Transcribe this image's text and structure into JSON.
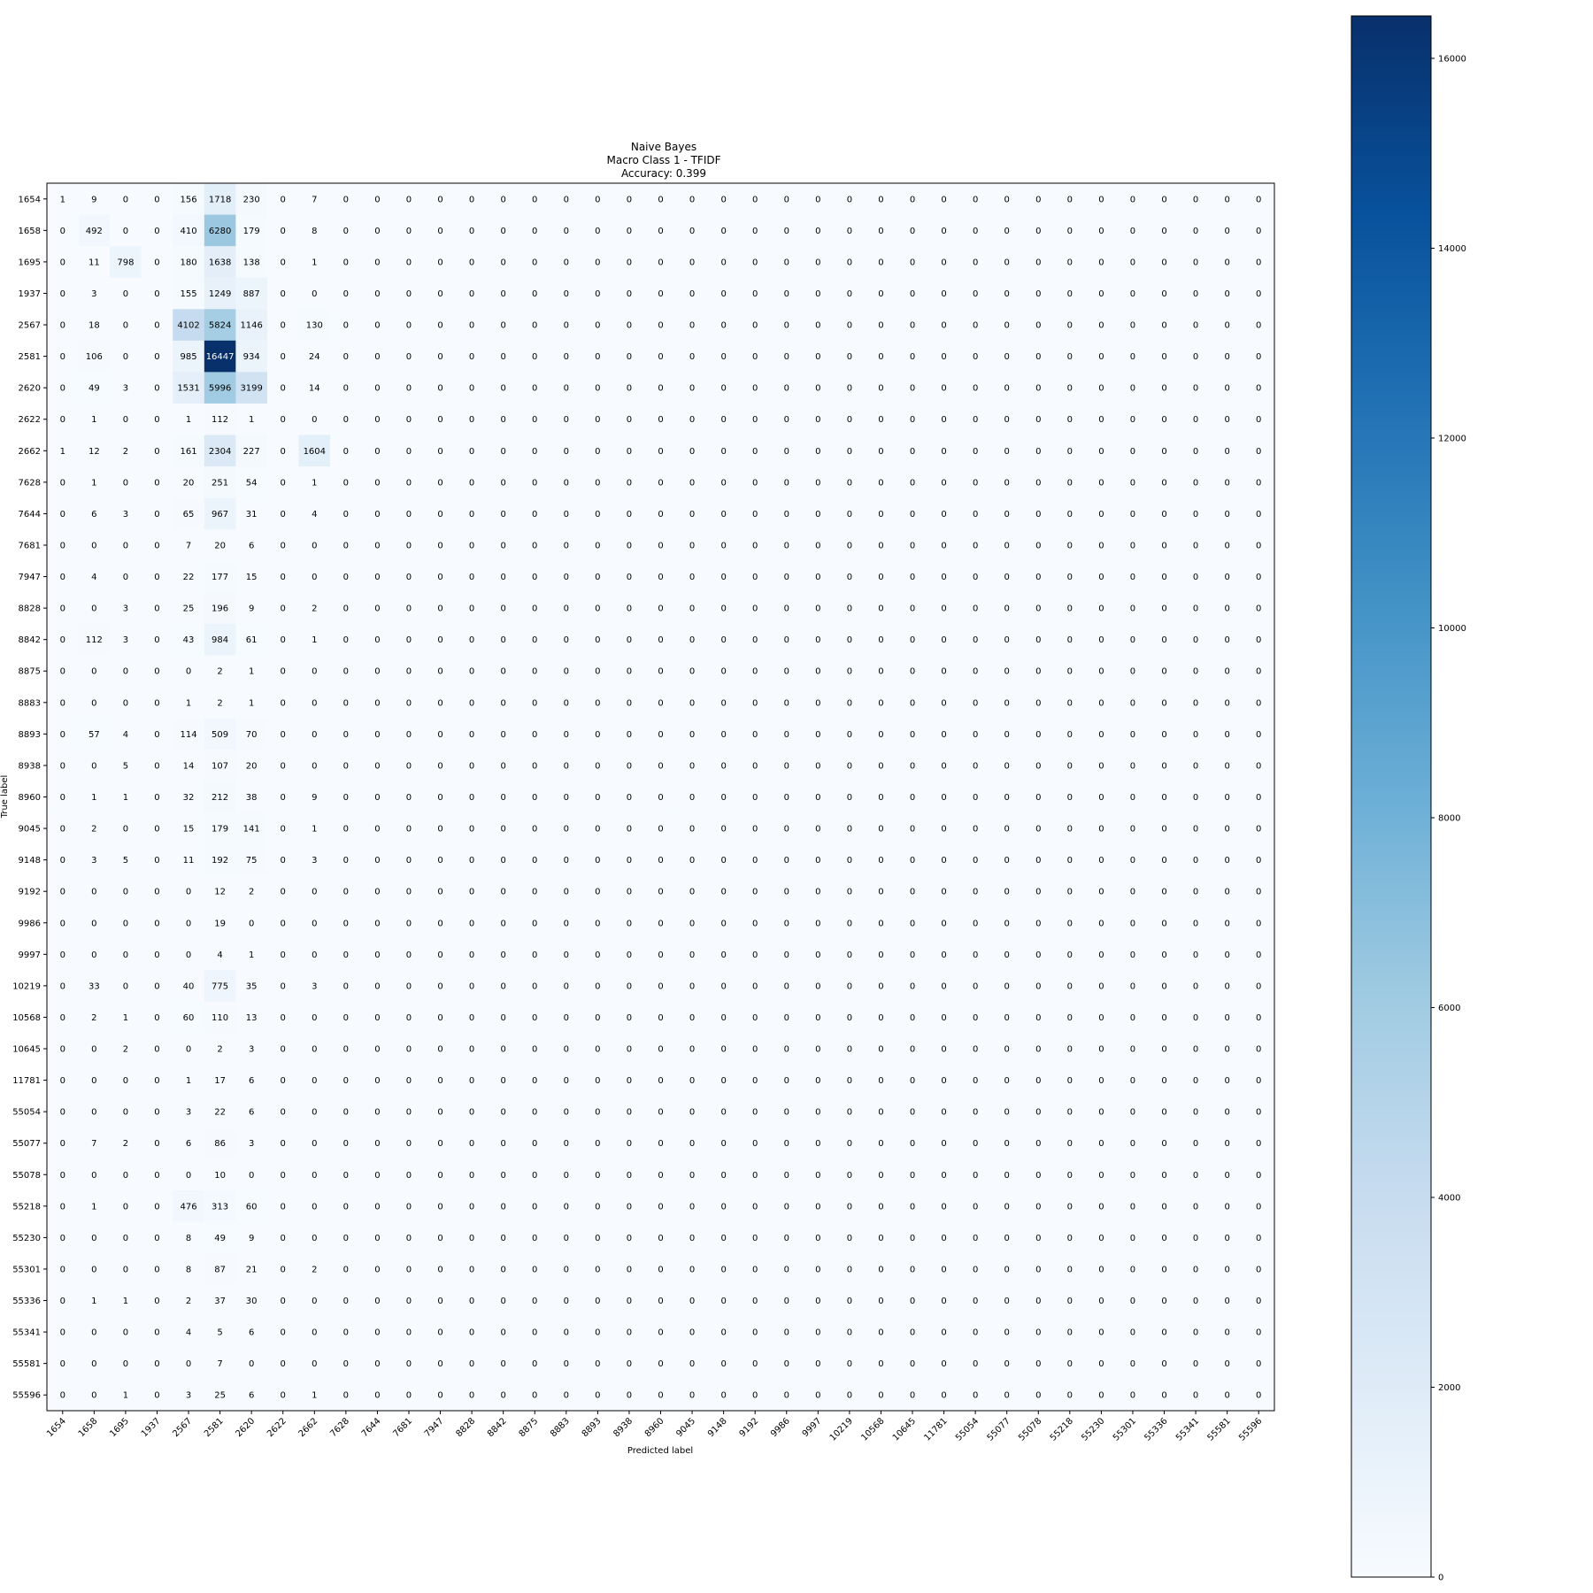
{
  "chart_data": {
    "type": "heatmap",
    "title_lines": [
      "Naive Bayes",
      "Macro Class 1 - TFIDF",
      "Accuracy: 0.399"
    ],
    "xlabel": "Predicted label",
    "ylabel": "True label",
    "labels": [
      "1654",
      "1658",
      "1695",
      "1937",
      "2567",
      "2581",
      "2620",
      "2622",
      "2662",
      "7628",
      "7644",
      "7681",
      "7947",
      "8828",
      "8842",
      "8875",
      "8883",
      "8893",
      "8938",
      "8960",
      "9045",
      "9148",
      "9192",
      "9986",
      "9997",
      "10219",
      "10568",
      "10645",
      "11781",
      "55054",
      "55077",
      "55078",
      "55218",
      "55230",
      "55301",
      "55336",
      "55341",
      "55581",
      "55596"
    ],
    "nonzero_cols": [
      "1654",
      "1658",
      "1695",
      "1937",
      "2567",
      "2581",
      "2620",
      "2622",
      "2662"
    ],
    "rows": [
      [
        1,
        9,
        0,
        0,
        156,
        1718,
        230,
        0,
        7
      ],
      [
        0,
        492,
        0,
        0,
        410,
        6280,
        179,
        0,
        8
      ],
      [
        0,
        11,
        798,
        0,
        180,
        1638,
        138,
        0,
        1
      ],
      [
        0,
        3,
        0,
        0,
        155,
        1249,
        887,
        0,
        0
      ],
      [
        0,
        18,
        0,
        0,
        4102,
        5824,
        1146,
        0,
        130
      ],
      [
        0,
        106,
        0,
        0,
        985,
        16447,
        934,
        0,
        24
      ],
      [
        0,
        49,
        3,
        0,
        1531,
        5996,
        3199,
        0,
        14
      ],
      [
        0,
        1,
        0,
        0,
        1,
        112,
        1,
        0,
        0
      ],
      [
        1,
        12,
        2,
        0,
        161,
        2304,
        227,
        0,
        1604
      ],
      [
        0,
        1,
        0,
        0,
        20,
        251,
        54,
        0,
        1
      ],
      [
        0,
        6,
        3,
        0,
        65,
        967,
        31,
        0,
        4
      ],
      [
        0,
        0,
        0,
        0,
        7,
        20,
        6,
        0,
        0
      ],
      [
        0,
        4,
        0,
        0,
        22,
        177,
        15,
        0,
        0
      ],
      [
        0,
        0,
        3,
        0,
        25,
        196,
        9,
        0,
        2
      ],
      [
        0,
        112,
        3,
        0,
        43,
        984,
        61,
        0,
        1
      ],
      [
        0,
        0,
        0,
        0,
        0,
        2,
        1,
        0,
        0
      ],
      [
        0,
        0,
        0,
        0,
        1,
        2,
        1,
        0,
        0
      ],
      [
        0,
        57,
        4,
        0,
        114,
        509,
        70,
        0,
        0
      ],
      [
        0,
        0,
        5,
        0,
        14,
        107,
        20,
        0,
        0
      ],
      [
        0,
        1,
        1,
        0,
        32,
        212,
        38,
        0,
        9
      ],
      [
        0,
        2,
        0,
        0,
        15,
        179,
        141,
        0,
        1
      ],
      [
        0,
        3,
        5,
        0,
        11,
        192,
        75,
        0,
        3
      ],
      [
        0,
        0,
        0,
        0,
        0,
        12,
        2,
        0,
        0
      ],
      [
        0,
        0,
        0,
        0,
        0,
        19,
        0,
        0,
        0
      ],
      [
        0,
        0,
        0,
        0,
        0,
        4,
        1,
        0,
        0
      ],
      [
        0,
        33,
        0,
        0,
        40,
        775,
        35,
        0,
        3
      ],
      [
        0,
        2,
        1,
        0,
        60,
        110,
        13,
        0,
        0
      ],
      [
        0,
        0,
        2,
        0,
        0,
        2,
        3,
        0,
        0
      ],
      [
        0,
        0,
        0,
        0,
        1,
        17,
        6,
        0,
        0
      ],
      [
        0,
        0,
        0,
        0,
        3,
        22,
        6,
        0,
        0
      ],
      [
        0,
        7,
        2,
        0,
        6,
        86,
        3,
        0,
        0
      ],
      [
        0,
        0,
        0,
        0,
        0,
        10,
        0,
        0,
        0
      ],
      [
        0,
        1,
        0,
        0,
        476,
        313,
        60,
        0,
        0
      ],
      [
        0,
        0,
        0,
        0,
        8,
        49,
        9,
        0,
        0
      ],
      [
        0,
        0,
        0,
        0,
        8,
        87,
        21,
        0,
        2
      ],
      [
        0,
        1,
        1,
        0,
        2,
        37,
        30,
        0,
        0
      ],
      [
        0,
        0,
        0,
        0,
        4,
        5,
        6,
        0,
        0
      ],
      [
        0,
        0,
        0,
        0,
        0,
        7,
        0,
        0,
        0
      ],
      [
        0,
        0,
        1,
        0,
        3,
        25,
        6,
        0,
        1
      ]
    ],
    "colorbar": {
      "range": [
        0,
        16447
      ],
      "ticks": [
        0,
        2000,
        4000,
        6000,
        8000,
        10000,
        12000,
        14000,
        16000
      ],
      "colormap": "Blues",
      "colors": [
        "#f7fbff",
        "#deebf7",
        "#c6dbef",
        "#9ecae1",
        "#6baed6",
        "#4292c6",
        "#2171b5",
        "#08519c",
        "#08306b"
      ]
    },
    "grid": false
  }
}
